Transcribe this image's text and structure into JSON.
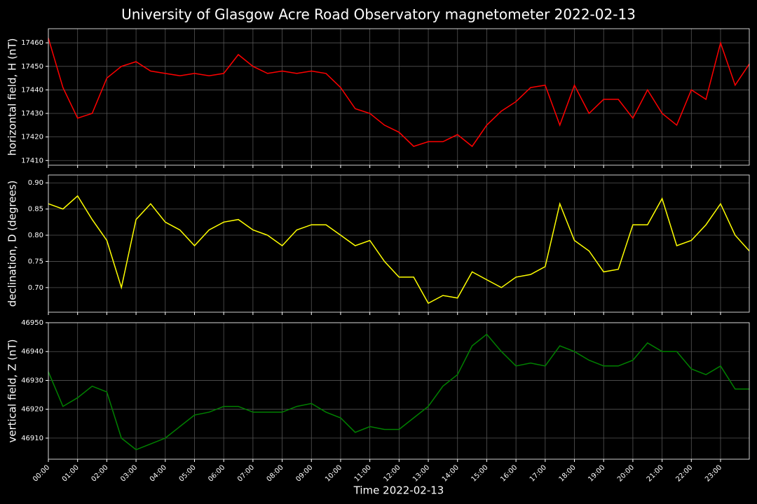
{
  "title": "University of Glasgow Acre Road Observatory magnetometer 2022-02-13",
  "chart_data": [
    {
      "type": "line",
      "ylabel": "horizontal field, H (nT)",
      "color": "#ff0000",
      "grid": true,
      "x": [
        "00:00",
        "00:30",
        "01:00",
        "01:30",
        "02:00",
        "02:30",
        "03:00",
        "03:30",
        "04:00",
        "04:30",
        "05:00",
        "05:30",
        "06:00",
        "06:30",
        "07:00",
        "07:30",
        "08:00",
        "08:30",
        "09:00",
        "09:30",
        "10:00",
        "10:30",
        "11:00",
        "11:30",
        "12:00",
        "12:30",
        "13:00",
        "13:30",
        "14:00",
        "14:30",
        "15:00",
        "15:30",
        "16:00",
        "16:30",
        "17:00",
        "17:30",
        "18:00",
        "18:30",
        "19:00",
        "19:30",
        "20:00",
        "20:30",
        "21:00",
        "21:30",
        "22:00",
        "22:30",
        "23:00",
        "23:30",
        "23:59"
      ],
      "values": [
        17462,
        17441,
        17428,
        17430,
        17445,
        17450,
        17452,
        17448,
        17447,
        17446,
        17447,
        17446,
        17447,
        17455,
        17450,
        17447,
        17448,
        17447,
        17448,
        17447,
        17441,
        17432,
        17430,
        17425,
        17422,
        17416,
        17418,
        17418,
        17421,
        17416,
        17425,
        17431,
        17435,
        17441,
        17442,
        17425,
        17442,
        17430,
        17436,
        17436,
        17428,
        17440,
        17430,
        17425,
        17440,
        17436,
        17460,
        17442,
        17451
      ],
      "xlim": [
        "00:00",
        "23:59"
      ],
      "ylim": [
        17408,
        17466
      ],
      "yticks": [
        17410,
        17420,
        17430,
        17440,
        17450,
        17460
      ]
    },
    {
      "type": "line",
      "ylabel": "declination, D (degrees)",
      "color": "#ffff00",
      "grid": true,
      "x": [
        "00:00",
        "00:30",
        "01:00",
        "01:30",
        "02:00",
        "02:30",
        "03:00",
        "03:30",
        "04:00",
        "04:30",
        "05:00",
        "05:30",
        "06:00",
        "06:30",
        "07:00",
        "07:30",
        "08:00",
        "08:30",
        "09:00",
        "09:30",
        "10:00",
        "10:30",
        "11:00",
        "11:30",
        "12:00",
        "12:30",
        "13:00",
        "13:30",
        "14:00",
        "14:30",
        "15:00",
        "15:30",
        "16:00",
        "16:30",
        "17:00",
        "17:30",
        "18:00",
        "18:30",
        "19:00",
        "19:30",
        "20:00",
        "20:30",
        "21:00",
        "21:30",
        "22:00",
        "22:30",
        "23:00",
        "23:30",
        "23:59"
      ],
      "values": [
        0.86,
        0.85,
        0.875,
        0.83,
        0.79,
        0.7,
        0.83,
        0.86,
        0.825,
        0.81,
        0.78,
        0.81,
        0.825,
        0.83,
        0.81,
        0.8,
        0.78,
        0.81,
        0.82,
        0.82,
        0.8,
        0.78,
        0.79,
        0.75,
        0.72,
        0.72,
        0.67,
        0.685,
        0.68,
        0.73,
        0.715,
        0.7,
        0.72,
        0.725,
        0.74,
        0.86,
        0.79,
        0.77,
        0.73,
        0.735,
        0.82,
        0.82,
        0.87,
        0.78,
        0.79,
        0.82,
        0.86,
        0.8,
        0.77
      ],
      "xlim": [
        "00:00",
        "23:59"
      ],
      "ylim": [
        0.653,
        0.915
      ],
      "yticks": [
        {
          "value": 0.7,
          "label": "0.70"
        },
        0.75,
        {
          "value": 0.8,
          "label": "0.80"
        },
        0.85,
        {
          "value": 0.9,
          "label": "0.90"
        }
      ]
    },
    {
      "type": "line",
      "ylabel": "vertical field, Z (nT)",
      "xlabel": "Time 2022-02-13",
      "color": "#008000",
      "grid": true,
      "x": [
        "00:00",
        "00:30",
        "01:00",
        "01:30",
        "02:00",
        "02:30",
        "03:00",
        "03:30",
        "04:00",
        "04:30",
        "05:00",
        "05:30",
        "06:00",
        "06:30",
        "07:00",
        "07:30",
        "08:00",
        "08:30",
        "09:00",
        "09:30",
        "10:00",
        "10:30",
        "11:00",
        "11:30",
        "12:00",
        "12:30",
        "13:00",
        "13:30",
        "14:00",
        "14:30",
        "15:00",
        "15:30",
        "16:00",
        "16:30",
        "17:00",
        "17:30",
        "18:00",
        "18:30",
        "19:00",
        "19:30",
        "20:00",
        "20:30",
        "21:00",
        "21:30",
        "22:00",
        "22:30",
        "23:00",
        "23:30",
        "23:59"
      ],
      "values": [
        46933,
        46921,
        46924,
        46928,
        46926,
        46910,
        46906,
        46908,
        46910,
        46914,
        46918,
        46919,
        46921,
        46921,
        46919,
        46919,
        46919,
        46921,
        46922,
        46919,
        46917,
        46912,
        46914,
        46913,
        46913,
        46917,
        46921,
        46928,
        46932,
        46942,
        46946,
        46940,
        46935,
        46936,
        46935,
        46942,
        46940,
        46937,
        46935,
        46935,
        46937,
        46943,
        46940,
        46940,
        46934,
        46932,
        46935,
        46927,
        46927
      ],
      "xlim": [
        "00:00",
        "23:59"
      ],
      "ylim": [
        46902.7,
        46950
      ],
      "yticks": [
        46910,
        46920,
        46930,
        46940,
        46950
      ],
      "xticks": [
        "00:00",
        "01:00",
        "02:00",
        "03:00",
        "04:00",
        "05:00",
        "06:00",
        "07:00",
        "08:00",
        "09:00",
        "10:00",
        "11:00",
        "12:00",
        "13:00",
        "14:00",
        "15:00",
        "16:00",
        "17:00",
        "18:00",
        "19:00",
        "20:00",
        "21:00",
        "22:00",
        "23:00"
      ]
    }
  ]
}
